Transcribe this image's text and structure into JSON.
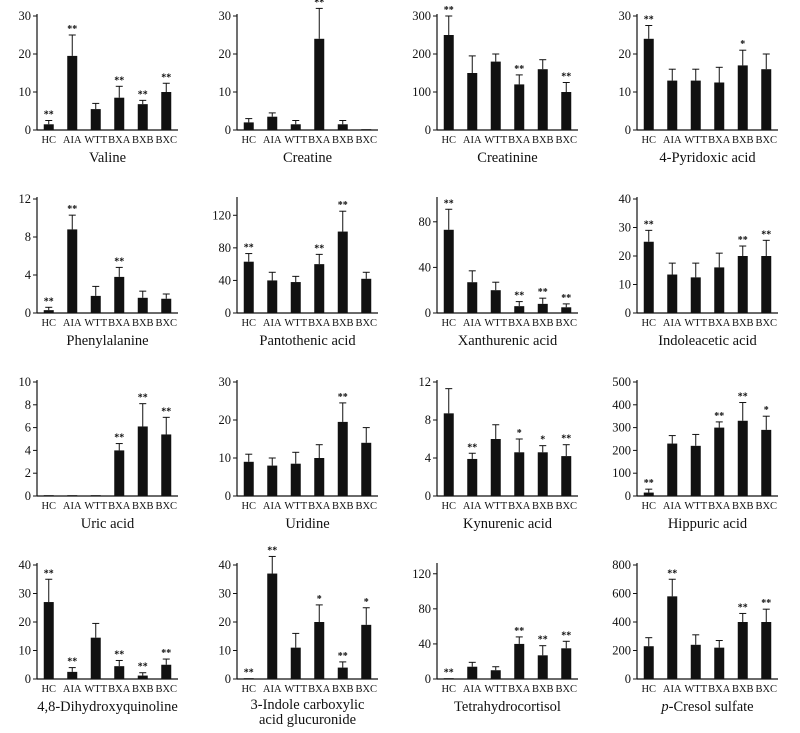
{
  "chart_data": [
    {
      "type": "bar",
      "title": "Valine",
      "title_lines": [
        "Valine"
      ],
      "categories": [
        "HC",
        "AIA",
        "WTT",
        "BXA",
        "BXB",
        "BXC"
      ],
      "values": [
        1.5,
        19.5,
        5.5,
        8.5,
        6.8,
        10
      ],
      "errors": [
        1,
        5.5,
        1.5,
        3,
        1,
        2.3
      ],
      "significance": [
        "**",
        "**",
        "",
        "**",
        "**",
        "**"
      ],
      "ylim": [
        0,
        30
      ],
      "yticks": [
        0,
        10,
        20,
        30
      ],
      "xlabel": "",
      "ylabel": ""
    },
    {
      "type": "bar",
      "title": "Creatine",
      "title_lines": [
        "Creatine"
      ],
      "categories": [
        "HC",
        "AIA",
        "WTT",
        "BXA",
        "BXB",
        "BXC"
      ],
      "values": [
        2,
        3.5,
        1.5,
        24,
        1.5,
        0.1
      ],
      "errors": [
        1,
        1,
        1,
        8,
        1,
        0.1
      ],
      "significance": [
        "",
        "",
        "",
        "**",
        "",
        ""
      ],
      "ylim": [
        0,
        30
      ],
      "yticks": [
        0,
        10,
        20,
        30
      ],
      "xlabel": "",
      "ylabel": ""
    },
    {
      "type": "bar",
      "title": "Creatinine",
      "title_lines": [
        "Creatinine"
      ],
      "categories": [
        "HC",
        "AIA",
        "WTT",
        "BXA",
        "BXB",
        "BXC"
      ],
      "values": [
        250,
        150,
        180,
        120,
        160,
        100
      ],
      "errors": [
        50,
        45,
        20,
        25,
        25,
        25
      ],
      "significance": [
        "**",
        "",
        "",
        "**",
        "",
        "**"
      ],
      "ylim": [
        0,
        300
      ],
      "yticks": [
        0,
        100,
        200,
        300
      ],
      "xlabel": "",
      "ylabel": ""
    },
    {
      "type": "bar",
      "title": "4-Pyridoxic acid",
      "title_lines": [
        "4-Pyridoxic acid"
      ],
      "categories": [
        "HC",
        "AIA",
        "WTT",
        "BXA",
        "BXB",
        "BXC"
      ],
      "values": [
        24,
        13,
        13,
        12.5,
        17,
        16
      ],
      "errors": [
        3.5,
        3,
        3,
        4,
        4,
        4
      ],
      "significance": [
        "**",
        "",
        "",
        "",
        "*",
        ""
      ],
      "ylim": [
        0,
        30
      ],
      "yticks": [
        0,
        10,
        20,
        30
      ],
      "xlabel": "",
      "ylabel": ""
    },
    {
      "type": "bar",
      "title": "Phenylalanine",
      "title_lines": [
        "Phenylalanine"
      ],
      "categories": [
        "HC",
        "AIA",
        "WTT",
        "BXA",
        "BXB",
        "BXC"
      ],
      "values": [
        0.3,
        8.8,
        1.8,
        3.8,
        1.6,
        1.5
      ],
      "errors": [
        0.3,
        1.5,
        1,
        1,
        0.7,
        0.5
      ],
      "significance": [
        "**",
        "**",
        "",
        "**",
        "",
        ""
      ],
      "ylim": [
        0,
        12
      ],
      "yticks": [
        0,
        4,
        8,
        12
      ],
      "xlabel": "",
      "ylabel": ""
    },
    {
      "type": "bar",
      "title": "Pantothenic acid",
      "title_lines": [
        "Pantothenic acid"
      ],
      "categories": [
        "HC",
        "AIA",
        "WTT",
        "BXA",
        "BXB",
        "BXC"
      ],
      "values": [
        63,
        40,
        38,
        60,
        100,
        42
      ],
      "errors": [
        10,
        10,
        7,
        12,
        25,
        8
      ],
      "significance": [
        "**",
        "",
        "",
        "**",
        "**",
        ""
      ],
      "ylim": [
        0,
        140
      ],
      "yticks": [
        0,
        40,
        80,
        120
      ],
      "xlabel": "",
      "ylabel": ""
    },
    {
      "type": "bar",
      "title": "Xanthurenic acid",
      "title_lines": [
        "Xanthurenic acid"
      ],
      "categories": [
        "HC",
        "AIA",
        "WTT",
        "BXA",
        "BXB",
        "BXC"
      ],
      "values": [
        73,
        27,
        20,
        6,
        8,
        5
      ],
      "errors": [
        18,
        10,
        7,
        4,
        5,
        3
      ],
      "significance": [
        "**",
        "",
        "",
        "**",
        "**",
        "**"
      ],
      "ylim": [
        0,
        100
      ],
      "yticks": [
        0,
        40,
        80
      ],
      "xlabel": "",
      "ylabel": ""
    },
    {
      "type": "bar",
      "title": "Indoleacetic acid",
      "title_lines": [
        "Indoleacetic acid"
      ],
      "categories": [
        "HC",
        "AIA",
        "WTT",
        "BXA",
        "BXB",
        "BXC"
      ],
      "values": [
        25,
        13.5,
        12.5,
        16,
        20,
        20
      ],
      "errors": [
        4,
        4,
        5,
        5,
        3.5,
        5.5
      ],
      "significance": [
        "**",
        "",
        "",
        "",
        "**",
        "**"
      ],
      "ylim": [
        0,
        40
      ],
      "yticks": [
        0,
        10,
        20,
        30,
        40
      ],
      "xlabel": "",
      "ylabel": ""
    },
    {
      "type": "bar",
      "title": "Uric acid",
      "title_lines": [
        "Uric acid"
      ],
      "categories": [
        "HC",
        "AIA",
        "WTT",
        "BXA",
        "BXB",
        "BXC"
      ],
      "values": [
        0.05,
        0.05,
        0.05,
        4,
        6.1,
        5.4
      ],
      "errors": [
        0.05,
        0.05,
        0.05,
        0.6,
        2,
        1.5
      ],
      "significance": [
        "",
        "",
        "",
        "**",
        "**",
        "**"
      ],
      "ylim": [
        0,
        10
      ],
      "yticks": [
        0,
        2,
        4,
        6,
        8,
        10
      ],
      "xlabel": "",
      "ylabel": ""
    },
    {
      "type": "bar",
      "title": "Uridine",
      "title_lines": [
        "Uridine"
      ],
      "categories": [
        "HC",
        "AIA",
        "WTT",
        "BXA",
        "BXB",
        "BXC"
      ],
      "values": [
        9,
        8,
        8.5,
        10,
        19.5,
        14
      ],
      "errors": [
        2,
        2,
        3,
        3.5,
        5,
        4
      ],
      "significance": [
        "",
        "",
        "",
        "",
        "**",
        ""
      ],
      "ylim": [
        0,
        30
      ],
      "yticks": [
        0,
        10,
        20,
        30
      ],
      "xlabel": "",
      "ylabel": ""
    },
    {
      "type": "bar",
      "title": "Kynurenic acid",
      "title_lines": [
        "Kynurenic acid"
      ],
      "categories": [
        "HC",
        "AIA",
        "WTT",
        "BXA",
        "BXB",
        "BXC"
      ],
      "values": [
        8.7,
        3.9,
        6,
        4.6,
        4.6,
        4.2
      ],
      "errors": [
        2.6,
        0.6,
        1.5,
        1.4,
        0.7,
        1.2
      ],
      "significance": [
        "",
        "**",
        "",
        "*",
        "*",
        "**"
      ],
      "ylim": [
        0,
        12
      ],
      "yticks": [
        0,
        4,
        8,
        12
      ],
      "xlabel": "",
      "ylabel": ""
    },
    {
      "type": "bar",
      "title": "Hippuric acid",
      "title_lines": [
        "Hippuric acid"
      ],
      "categories": [
        "HC",
        "AIA",
        "WTT",
        "BXA",
        "BXB",
        "BXC"
      ],
      "values": [
        15,
        230,
        220,
        300,
        330,
        290
      ],
      "errors": [
        15,
        35,
        50,
        25,
        80,
        60
      ],
      "significance": [
        "**",
        "",
        "",
        "**",
        "**",
        "*"
      ],
      "ylim": [
        0,
        500
      ],
      "yticks": [
        0,
        100,
        200,
        300,
        400,
        500
      ],
      "xlabel": "",
      "ylabel": ""
    },
    {
      "type": "bar",
      "title": "4,8-Dihydroxyquinoline",
      "title_lines": [
        "4,8-Dihydroxyquinoline"
      ],
      "categories": [
        "HC",
        "AIA",
        "WTT",
        "BXA",
        "BXB",
        "BXC"
      ],
      "values": [
        27,
        2.5,
        14.5,
        4.5,
        1.2,
        5
      ],
      "errors": [
        8,
        1.5,
        5,
        2,
        1,
        2
      ],
      "significance": [
        "**",
        "**",
        "",
        "**",
        "**",
        "**"
      ],
      "ylim": [
        0,
        40
      ],
      "yticks": [
        0,
        10,
        20,
        30,
        40
      ],
      "xlabel": "",
      "ylabel": ""
    },
    {
      "type": "bar",
      "title": "3-Indole carboxylic acid glucuronide",
      "title_lines": [
        "3-Indole carboxylic",
        "acid glucuronide"
      ],
      "categories": [
        "HC",
        "AIA",
        "WTT",
        "BXA",
        "BXB",
        "BXC"
      ],
      "values": [
        0.1,
        37,
        11,
        20,
        4,
        19
      ],
      "errors": [
        0.1,
        6,
        5,
        6,
        2,
        6
      ],
      "significance": [
        "**",
        "**",
        "",
        "*",
        "**",
        "*"
      ],
      "ylim": [
        0,
        40
      ],
      "yticks": [
        0,
        10,
        20,
        30,
        40
      ],
      "xlabel": "",
      "ylabel": ""
    },
    {
      "type": "bar",
      "title": "Tetrahydrocortisol",
      "title_lines": [
        "Tetrahydrocortisol"
      ],
      "categories": [
        "HC",
        "AIA",
        "WTT",
        "BXA",
        "BXB",
        "BXC"
      ],
      "values": [
        0.3,
        14,
        10,
        40,
        27,
        35
      ],
      "errors": [
        0.3,
        5,
        4,
        8,
        11,
        8
      ],
      "significance": [
        "**",
        "",
        "",
        "**",
        "**",
        "**"
      ],
      "ylim": [
        0,
        130
      ],
      "yticks": [
        0,
        40,
        80,
        120
      ],
      "xlabel": "",
      "ylabel": ""
    },
    {
      "type": "bar",
      "title": "p-Cresol sulfate",
      "title_lines": [
        "p-Cresol sulfate"
      ],
      "title_italic_prefix": "p",
      "categories": [
        "HC",
        "AIA",
        "WTT",
        "BXA",
        "BXB",
        "BXC"
      ],
      "values": [
        230,
        580,
        240,
        220,
        400,
        400
      ],
      "errors": [
        60,
        120,
        70,
        50,
        60,
        90
      ],
      "significance": [
        "",
        "**",
        "",
        "",
        "**",
        "**"
      ],
      "ylim": [
        0,
        800
      ],
      "yticks": [
        0,
        200,
        400,
        600,
        800
      ],
      "xlabel": "",
      "ylabel": ""
    }
  ]
}
